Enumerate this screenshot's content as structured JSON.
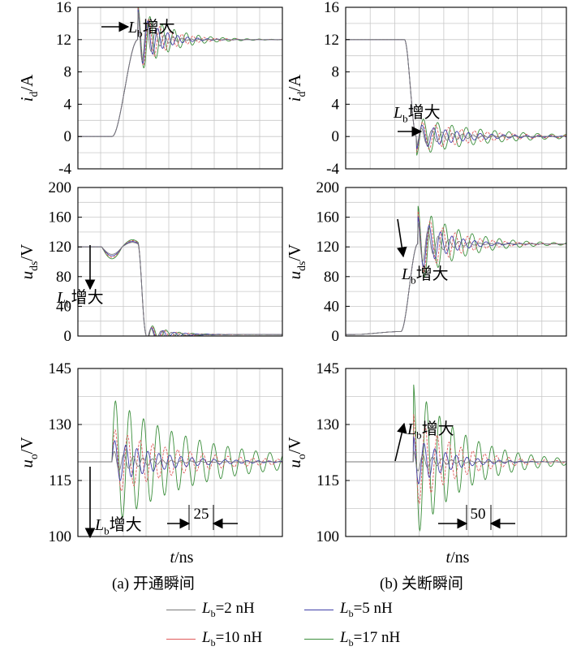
{
  "chart_data": [
    {
      "type": "line",
      "panel": "a-top",
      "ylabel": {
        "var": "i",
        "sub": "d",
        "unit": "/A"
      },
      "ylim": [
        -4,
        16
      ],
      "yticks": [
        -4,
        0,
        4,
        8,
        12,
        16
      ],
      "annotation": {
        "var": "L",
        "sub": "b",
        "text": "增大"
      },
      "series_levels": {
        "initial": 0,
        "final": 12
      },
      "peak_values": {
        "L_b=2 nH": 15.5,
        "L_b=5 nH": 15.8,
        "L_b=10 nH": 16.0,
        "L_b=17 nH": 16.3
      }
    },
    {
      "type": "line",
      "panel": "a-mid",
      "ylabel": {
        "var": "u",
        "sub": "ds",
        "unit": "/V"
      },
      "ylim": [
        0,
        200
      ],
      "yticks": [
        0,
        40,
        80,
        120,
        160,
        200
      ],
      "annotation": {
        "var": "L",
        "sub": "b",
        "text": "增大"
      },
      "series_levels": {
        "initial": 120,
        "final": 2
      }
    },
    {
      "type": "line",
      "panel": "a-bot",
      "ylabel": {
        "var": "u",
        "sub": "o",
        "unit": "/V"
      },
      "ylim": [
        100,
        145
      ],
      "yticks": [
        100,
        115,
        130,
        145
      ],
      "xlabel": {
        "var": "t",
        "unit": "/ns"
      },
      "annotation": {
        "var": "L",
        "sub": "b",
        "text": "增大"
      },
      "scale_marker": "25",
      "series_levels": {
        "initial": 120,
        "final": 120
      },
      "min_values": {
        "L_b=2 nH": 117,
        "L_b=5 nH": 114,
        "L_b=10 nH": 111,
        "L_b=17 nH": 103
      }
    },
    {
      "type": "line",
      "panel": "b-top",
      "ylabel": {
        "var": "i",
        "sub": "d",
        "unit": "/A"
      },
      "ylim": [
        -4,
        16
      ],
      "yticks": [
        -4,
        0,
        4,
        8,
        12,
        16
      ],
      "annotation": {
        "var": "L",
        "sub": "b",
        "text": "增大"
      },
      "series_levels": {
        "initial": 12,
        "final": 0
      }
    },
    {
      "type": "line",
      "panel": "b-mid",
      "ylabel": {
        "var": "u",
        "sub": "ds",
        "unit": "/V"
      },
      "ylim": [
        0,
        200
      ],
      "yticks": [
        0,
        40,
        80,
        120,
        160,
        200
      ],
      "annotation": {
        "var": "L",
        "sub": "b",
        "text": "增大"
      },
      "series_levels": {
        "initial": 2,
        "final": 120
      },
      "peak_values": {
        "L_b=2 nH": 150,
        "L_b=5 nH": 158,
        "L_b=10 nH": 165,
        "L_b=17 nH": 172
      }
    },
    {
      "type": "line",
      "panel": "b-bot",
      "ylabel": {
        "var": "u",
        "sub": "o",
        "unit": "/V"
      },
      "ylim": [
        100,
        145
      ],
      "yticks": [
        100,
        115,
        130,
        145
      ],
      "xlabel": {
        "var": "t",
        "unit": "/ns"
      },
      "annotation": {
        "var": "L",
        "sub": "b",
        "text": "增大"
      },
      "scale_marker": "50",
      "series_levels": {
        "initial": 120,
        "final": 120
      },
      "peak_values": {
        "L_b=2 nH": 123,
        "L_b=5 nH": 127,
        "L_b=10 nH": 133,
        "L_b=17 nH": 141
      }
    }
  ],
  "captions": {
    "a": "(a) 开通瞬间",
    "b": "(b) 关断瞬间"
  },
  "legend": [
    {
      "var": "L",
      "sub": "b",
      "text": "=2 nH",
      "color": "#7a7a7a"
    },
    {
      "var": "L",
      "sub": "b",
      "text": "=5 nH",
      "color": "#3f3fa8"
    },
    {
      "var": "L",
      "sub": "b",
      "text": "=10 nH",
      "color": "#e05a5a"
    },
    {
      "var": "L",
      "sub": "b",
      "text": "=17 nH",
      "color": "#3c8f3c"
    }
  ]
}
